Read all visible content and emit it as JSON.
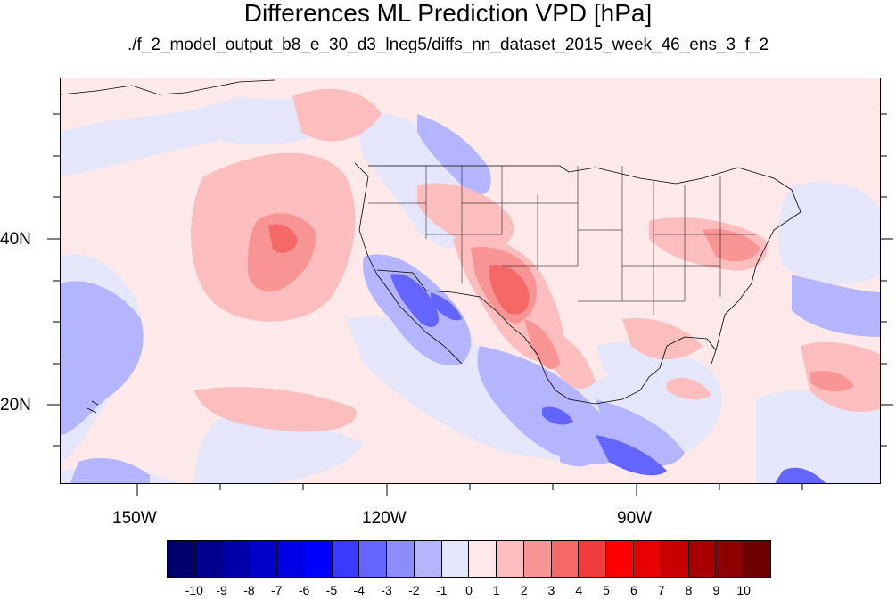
{
  "title": "Differences ML Prediction VPD [hPa]",
  "subtitle": "./f_2_model_output_b8_e_30_d3_lneg5/diffs_nn_dataset_2015_week_46_ens_3_f_2",
  "lat_labels": [
    "40N",
    "20N"
  ],
  "lon_labels": [
    "150W",
    "120W",
    "90W"
  ],
  "colorbar": {
    "labels": [
      "-10",
      "-9",
      "-8",
      "-7",
      "-6",
      "-5",
      "-4",
      "-3",
      "-2",
      "-1",
      "0",
      "1",
      "2",
      "3",
      "4",
      "5",
      "6",
      "7",
      "8",
      "9",
      "10"
    ],
    "colors": [
      "#00006e",
      "#00008e",
      "#0000aa",
      "#0000c8",
      "#0000e6",
      "#0000ff",
      "#3a3aff",
      "#6464ff",
      "#8c8cff",
      "#b4b4ff",
      "#e6e6fa",
      "#fde9e9",
      "#fbbdbd",
      "#f89494",
      "#f46868",
      "#f03c3c",
      "#ff0000",
      "#e60000",
      "#c80000",
      "#a80000",
      "#8e0000",
      "#6e0000"
    ]
  },
  "palette": {
    "background": "#fde9e9",
    "light_blue": "#e6e6fa",
    "blue": "#b4b4ff",
    "mid_blue": "#8c8cff",
    "strong_blue": "#3a3aff",
    "pink": "#fbbdbd",
    "red": "#f89494",
    "strong_red": "#f46868",
    "deep_red": "#f03c3c",
    "coast": "#000000"
  }
}
